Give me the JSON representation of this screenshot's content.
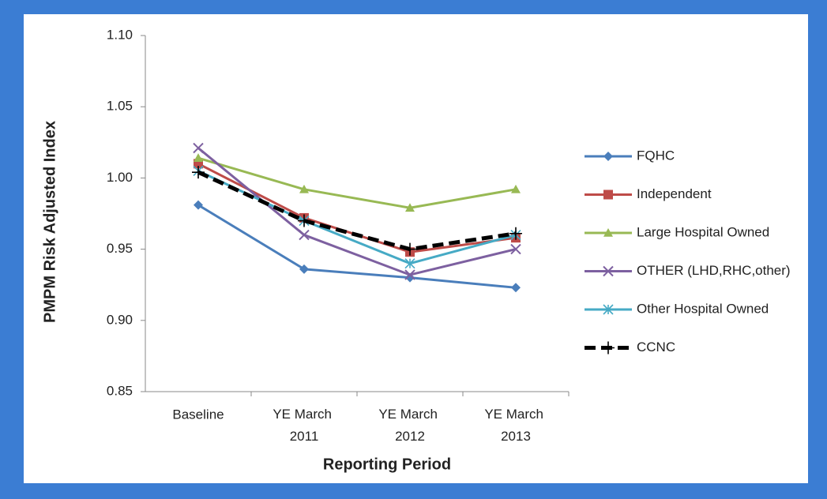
{
  "chart_data": {
    "type": "line",
    "x_label": "Reporting Period",
    "y_label": "PMPM Risk Adjusted Index",
    "categories": [
      "Baseline",
      "YE March 2011",
      "YE March 2012",
      "YE March 2013"
    ],
    "ylim": [
      0.85,
      1.1
    ],
    "yticks": [
      0.85,
      {
        "value": 0.9,
        "label": "0.90"
      },
      0.95,
      {
        "value": 1,
        "label": "1.00"
      },
      1.05,
      {
        "value": 1.1,
        "label": "1.10"
      }
    ],
    "legend": "right",
    "series": [
      {
        "name": "FQHC",
        "color": "#4a7ebb",
        "marker": "diamond",
        "values": [
          0.981,
          0.936,
          0.93,
          0.923
        ]
      },
      {
        "name": "Independent",
        "color": "#be4b48",
        "marker": "square",
        "values": [
          1.01,
          0.972,
          0.948,
          0.958
        ]
      },
      {
        "name": "Large Hospital Owned",
        "color": "#98b954",
        "marker": "triangle",
        "values": [
          1.014,
          0.992,
          0.979,
          0.992
        ]
      },
      {
        "name": "OTHER (LHD,RHC,other)",
        "color": "#7d60a0",
        "marker": "x",
        "values": [
          1.021,
          0.96,
          0.932,
          0.95
        ]
      },
      {
        "name": "Other Hospital Owned",
        "color": "#46aac5",
        "marker": "asterisk",
        "values": [
          1.005,
          0.97,
          0.94,
          0.96
        ]
      },
      {
        "name": "CCNC",
        "color": "#000000",
        "marker": "plus",
        "dashed": true,
        "values": [
          1.004,
          0.97,
          0.95,
          0.961
        ]
      }
    ]
  }
}
